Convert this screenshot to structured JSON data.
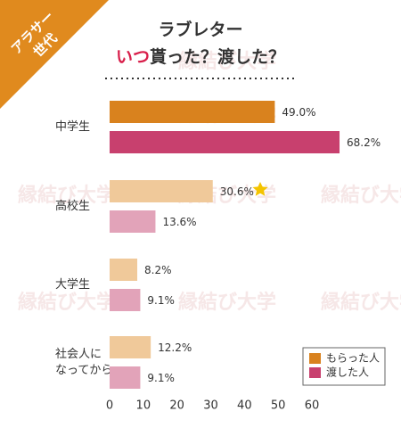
{
  "chart_data": {
    "type": "hbar",
    "badge": [
      "アラサー",
      "世代"
    ],
    "title": [
      "ラブレター",
      [
        "いつ",
        "貰った？渡した？"
      ]
    ],
    "watermark": "縁結び大学",
    "categories": [
      [
        "中学生"
      ],
      [
        "高校生"
      ],
      [
        "大学生"
      ],
      [
        "社会人に",
        "なってから"
      ]
    ],
    "series": [
      {
        "name": "もらった人",
        "color": "#d9821e",
        "colors": [
          "#d9821e",
          "#f0c99a",
          "#f0c99a",
          "#f0c99a"
        ],
        "values": [
          49.0,
          30.6,
          8.2,
          12.2
        ],
        "value_labels": [
          "49.0%",
          "30.6%",
          "8.2%",
          "12.2%"
        ]
      },
      {
        "name": "渡した人",
        "color": "#c8406e",
        "colors": [
          "#c8406e",
          "#e2a3b9",
          "#e2a3b9",
          "#e2a3b9"
        ],
        "values": [
          68.2,
          13.6,
          9.1,
          9.1
        ],
        "value_labels": [
          "68.2%",
          "13.6%",
          "9.1%",
          "9.1%"
        ]
      }
    ],
    "xlim": [
      0,
      60
    ],
    "xticks": [
      0,
      10,
      20,
      30,
      40,
      50,
      60
    ],
    "grid": false,
    "legend": "lower right"
  }
}
